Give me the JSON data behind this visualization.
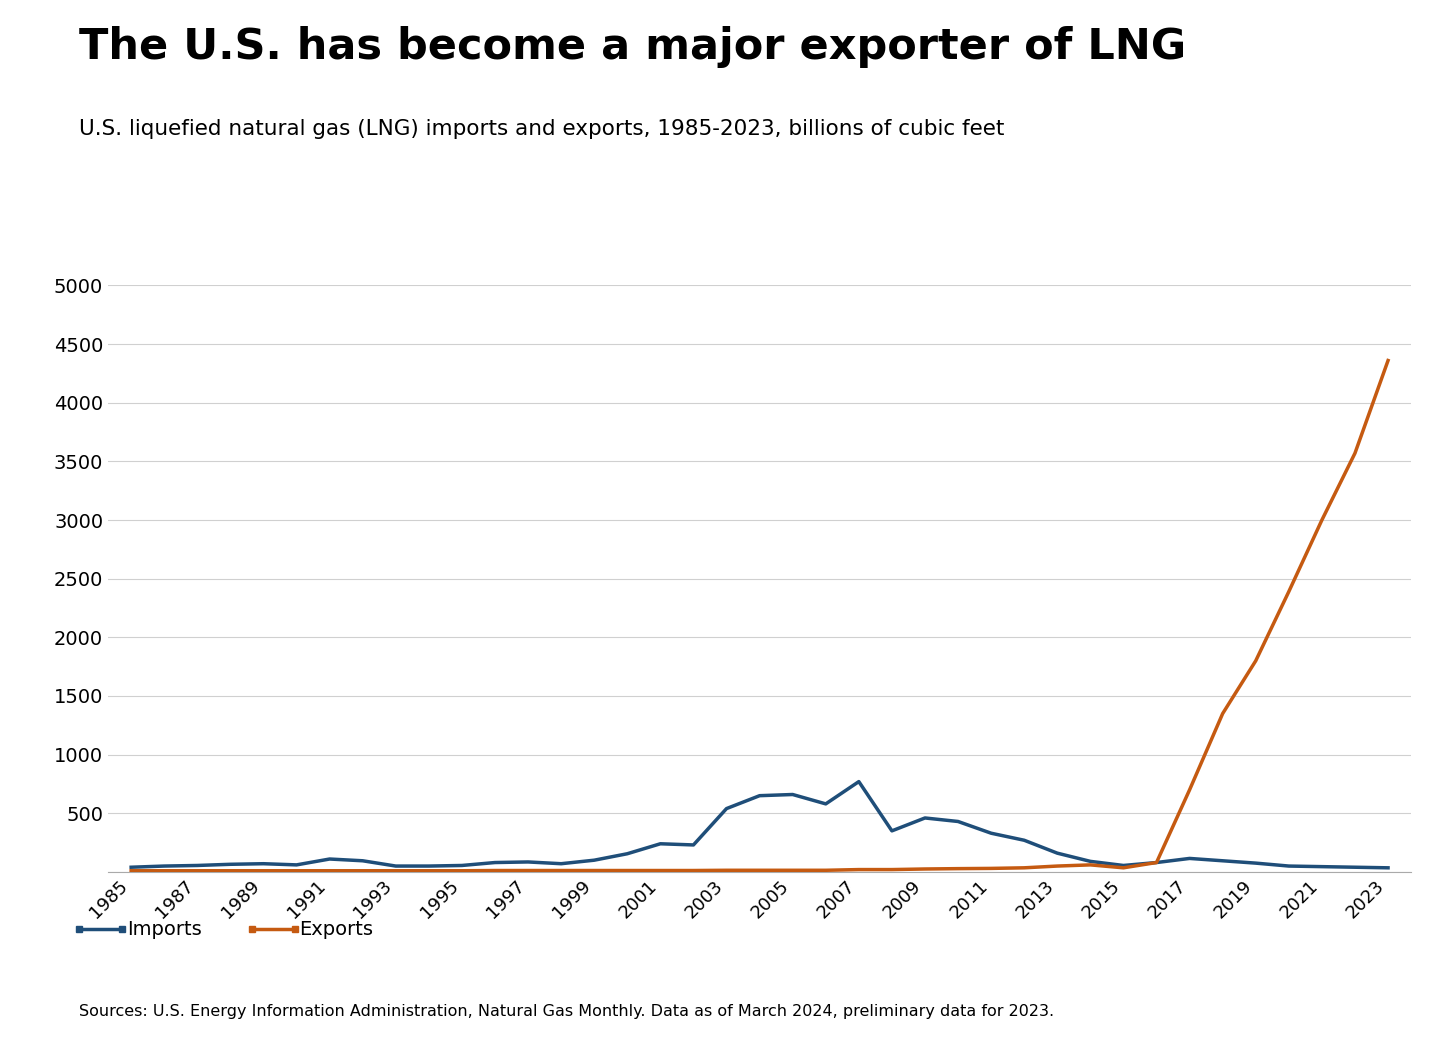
{
  "title": "The U.S. has become a major exporter of LNG",
  "subtitle": "U.S. liquefied natural gas (LNG) imports and exports, 1985-2023, billions of cubic feet",
  "source": "Sources: U.S. Energy Information Administration, Natural Gas Monthly. Data as of March 2024, preliminary data for 2023.",
  "years": [
    1985,
    1986,
    1987,
    1988,
    1989,
    1990,
    1991,
    1992,
    1993,
    1994,
    1995,
    1996,
    1997,
    1998,
    1999,
    2000,
    2001,
    2002,
    2003,
    2004,
    2005,
    2006,
    2007,
    2008,
    2009,
    2010,
    2011,
    2012,
    2013,
    2014,
    2015,
    2016,
    2017,
    2018,
    2019,
    2020,
    2021,
    2022,
    2023
  ],
  "imports": [
    40,
    50,
    55,
    65,
    70,
    60,
    110,
    95,
    50,
    50,
    55,
    80,
    85,
    70,
    100,
    155,
    240,
    230,
    540,
    650,
    660,
    580,
    770,
    350,
    460,
    430,
    330,
    270,
    160,
    90,
    55,
    80,
    115,
    95,
    75,
    50,
    45,
    40,
    35
  ],
  "exports": [
    10,
    10,
    10,
    10,
    10,
    10,
    10,
    10,
    10,
    10,
    10,
    12,
    12,
    12,
    12,
    12,
    12,
    12,
    14,
    14,
    14,
    14,
    20,
    20,
    25,
    28,
    30,
    35,
    50,
    60,
    35,
    80,
    700,
    1350,
    1800,
    2390,
    3000,
    3570,
    4360
  ],
  "imports_color": "#1f4e79",
  "exports_color": "#c55a11",
  "ylim": [
    0,
    5000
  ],
  "yticks": [
    0,
    500,
    1000,
    1500,
    2000,
    2500,
    3000,
    3500,
    4000,
    4500,
    5000
  ],
  "xticks": [
    1985,
    1987,
    1989,
    1991,
    1993,
    1995,
    1997,
    1999,
    2001,
    2003,
    2005,
    2007,
    2009,
    2011,
    2013,
    2015,
    2017,
    2019,
    2021,
    2023
  ],
  "background_color": "#ffffff",
  "grid_color": "#d0d0d0",
  "line_width": 2.5
}
